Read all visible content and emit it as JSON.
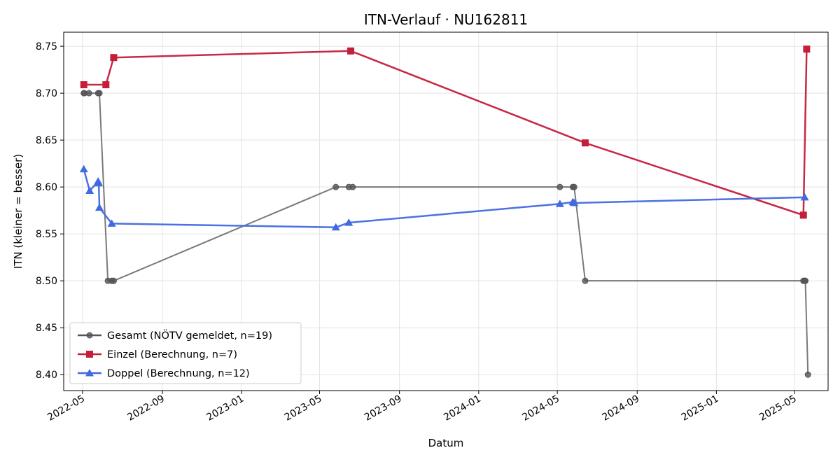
{
  "chart_data": {
    "type": "line",
    "title": "ITN-Verlauf · NU162811",
    "xlabel": "Datum",
    "ylabel": "ITN  (kleiner = besser)",
    "x_axis_type": "date",
    "xlim": [
      "2022-04-02",
      "2025-06-22"
    ],
    "ylim": [
      8.383,
      8.765
    ],
    "grid": true,
    "legend_position": "lower-left",
    "x_ticks": [
      "2022-05",
      "2022-09",
      "2023-01",
      "2023-05",
      "2023-09",
      "2024-01",
      "2024-05",
      "2024-09",
      "2025-01",
      "2025-05"
    ],
    "y_ticks": [
      "8.40",
      "8.45",
      "8.50",
      "8.55",
      "8.60",
      "8.65",
      "8.70",
      "8.75"
    ],
    "series": [
      {
        "name": "Gesamt (NÖTV gemeldet, n=19)",
        "color": "#555555",
        "marker": "circle",
        "points": [
          {
            "x": "2022-05-03",
            "y": 8.7
          },
          {
            "x": "2022-05-04",
            "y": 8.7
          },
          {
            "x": "2022-05-11",
            "y": 8.7
          },
          {
            "x": "2022-05-25",
            "y": 8.7
          },
          {
            "x": "2022-05-27",
            "y": 8.7
          },
          {
            "x": "2022-06-09",
            "y": 8.5
          },
          {
            "x": "2022-06-15",
            "y": 8.5
          },
          {
            "x": "2022-06-18",
            "y": 8.5
          },
          {
            "x": "2023-05-26",
            "y": 8.6
          },
          {
            "x": "2023-06-15",
            "y": 8.6
          },
          {
            "x": "2023-06-21",
            "y": 8.6
          },
          {
            "x": "2024-05-05",
            "y": 8.6
          },
          {
            "x": "2024-05-25",
            "y": 8.6
          },
          {
            "x": "2024-05-27",
            "y": 8.6
          },
          {
            "x": "2024-06-13",
            "y": 8.5
          },
          {
            "x": "2025-05-15",
            "y": 8.5
          },
          {
            "x": "2025-05-17",
            "y": 8.5
          },
          {
            "x": "2025-05-18",
            "y": 8.5
          },
          {
            "x": "2025-05-22",
            "y": 8.4
          }
        ]
      },
      {
        "name": "Einzel (Berechnung, n=7)",
        "color": "#c41e3a",
        "marker": "square",
        "points": [
          {
            "x": "2022-05-03",
            "y": 8.709
          },
          {
            "x": "2022-06-06",
            "y": 8.709
          },
          {
            "x": "2022-06-18",
            "y": 8.738
          },
          {
            "x": "2023-06-18",
            "y": 8.745
          },
          {
            "x": "2024-06-13",
            "y": 8.647
          },
          {
            "x": "2025-05-15",
            "y": 8.57
          },
          {
            "x": "2025-05-20",
            "y": 8.747
          }
        ]
      },
      {
        "name": "Doppel (Berechnung, n=12)",
        "color": "#4169e1",
        "marker": "triangle",
        "points": [
          {
            "x": "2022-05-03",
            "y": 8.619
          },
          {
            "x": "2022-05-12",
            "y": 8.596
          },
          {
            "x": "2022-05-25",
            "y": 8.606
          },
          {
            "x": "2022-05-26",
            "y": 8.604
          },
          {
            "x": "2022-05-27",
            "y": 8.578
          },
          {
            "x": "2022-06-15",
            "y": 8.561
          },
          {
            "x": "2023-05-26",
            "y": 8.557
          },
          {
            "x": "2023-06-15",
            "y": 8.562
          },
          {
            "x": "2024-05-05",
            "y": 8.582
          },
          {
            "x": "2024-05-25",
            "y": 8.584
          },
          {
            "x": "2024-05-27",
            "y": 8.583
          },
          {
            "x": "2025-05-17",
            "y": 8.589
          }
        ]
      }
    ]
  }
}
